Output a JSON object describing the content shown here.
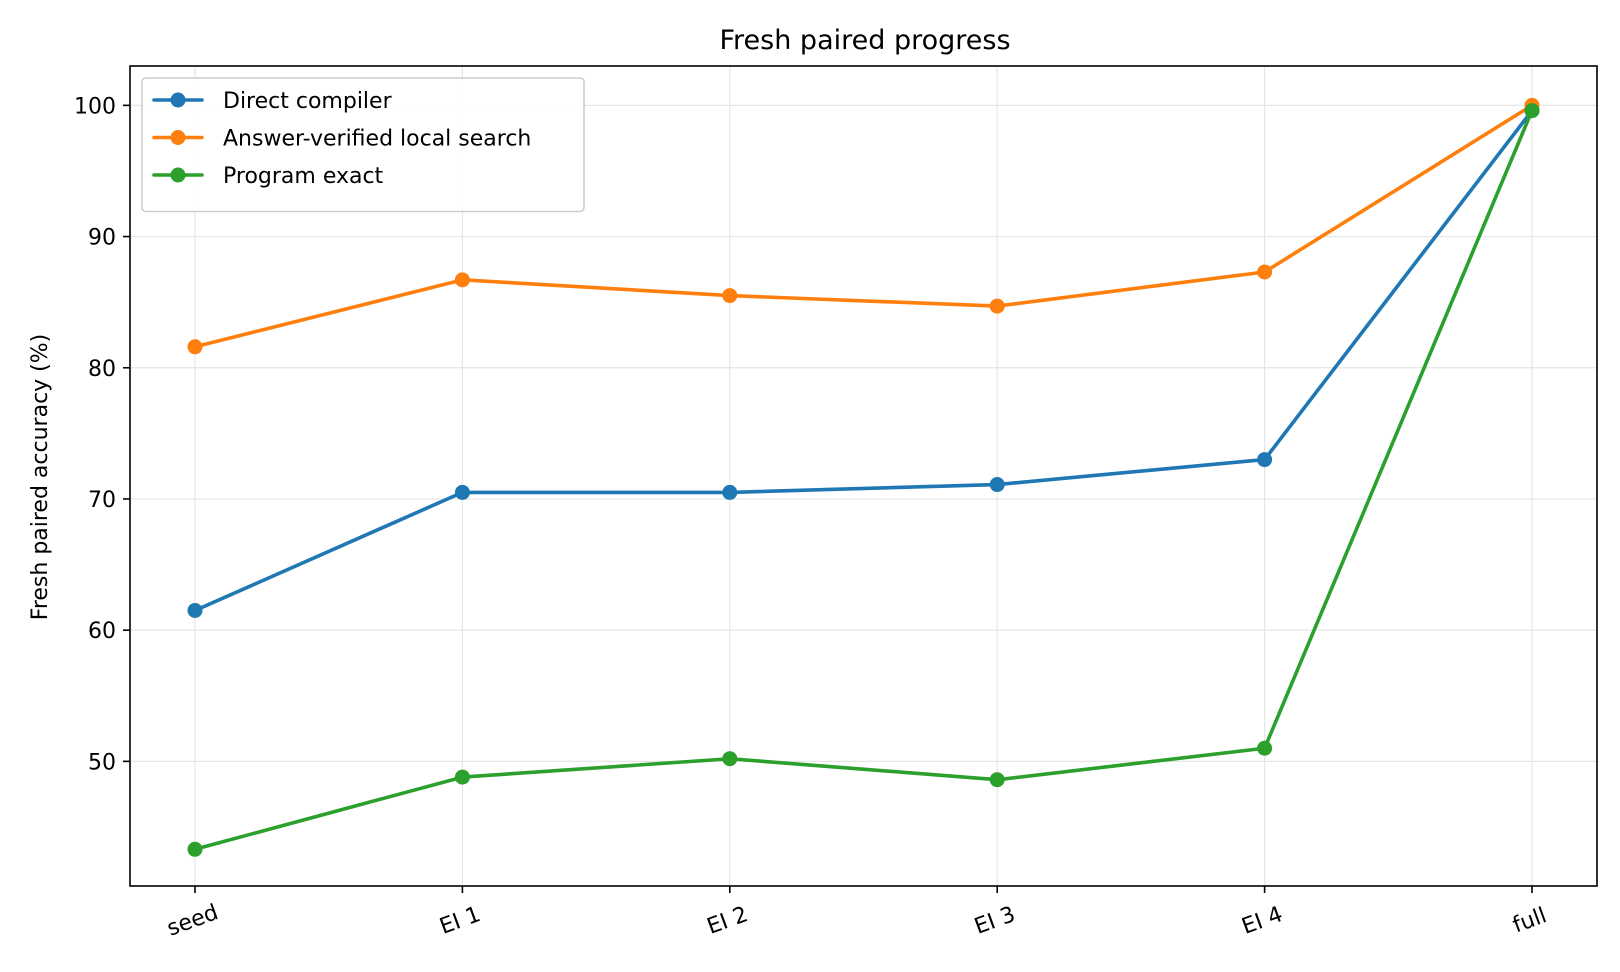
{
  "chart_data": {
    "type": "line",
    "title": "Fresh paired progress",
    "xlabel": "",
    "ylabel": "Fresh paired accuracy (%)",
    "categories": [
      "seed",
      "EI 1",
      "EI 2",
      "EI 3",
      "EI 4",
      "full"
    ],
    "yticks": [
      50,
      60,
      70,
      80,
      90,
      100
    ],
    "ylim": [
      40.5,
      103
    ],
    "grid": true,
    "legend_position": "top-left",
    "series": [
      {
        "name": "Direct compiler",
        "color": "#1f77b4",
        "values": [
          61.5,
          70.5,
          70.5,
          71.1,
          73.0,
          99.6
        ]
      },
      {
        "name": "Answer-verified local search",
        "color": "#ff7f0e",
        "values": [
          81.6,
          86.7,
          85.5,
          84.7,
          87.3,
          100.0
        ]
      },
      {
        "name": "Program exact",
        "color": "#2ca02c",
        "values": [
          43.3,
          48.8,
          50.2,
          48.6,
          51.0,
          99.6
        ]
      }
    ]
  }
}
